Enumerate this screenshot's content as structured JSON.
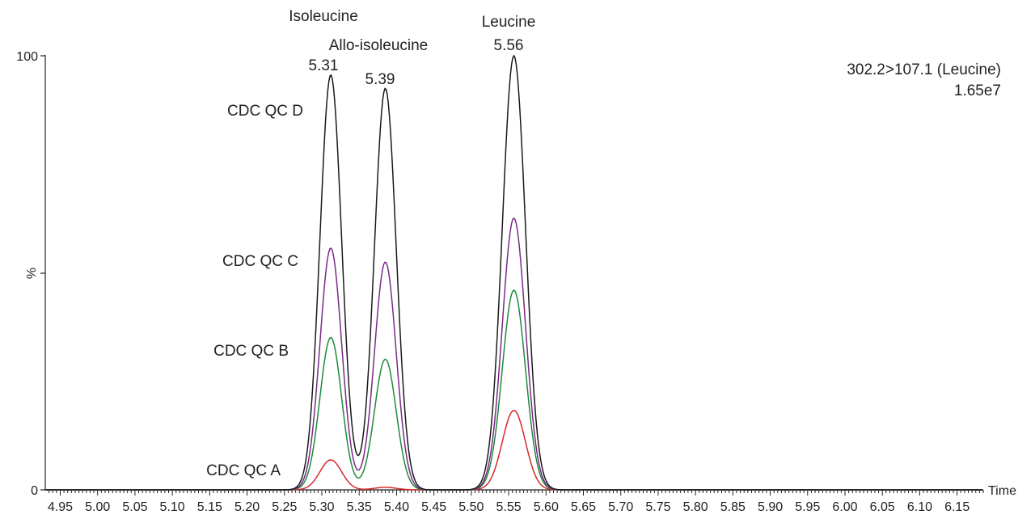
{
  "chart_data": {
    "type": "line",
    "title": "",
    "xlabel": "Time",
    "ylabel": "%",
    "xlim": [
      4.93,
      6.185
    ],
    "ylim": [
      0,
      100
    ],
    "x_ticks": [
      "4.95",
      "5.00",
      "5.05",
      "5.10",
      "5.15",
      "5.20",
      "5.25",
      "5.30",
      "5.35",
      "5.40",
      "5.45",
      "5.50",
      "5.55",
      "5.60",
      "5.65",
      "5.70",
      "5.75",
      "5.80",
      "5.85",
      "5.90",
      "5.95",
      "6.00",
      "6.05",
      "6.10",
      "6.15"
    ],
    "y_ticks": [
      "0",
      "100"
    ],
    "grid": false,
    "trace_info": {
      "transition": "302.2>107.1 (Leucine)",
      "intensity": "1.65e7"
    },
    "peaks": [
      {
        "name": "Isoleucine",
        "rt": "5.31"
      },
      {
        "name": "Allo-isoleucine",
        "rt": "5.39"
      },
      {
        "name": "Leucine",
        "rt": "5.56"
      }
    ],
    "series": [
      {
        "name": "CDC QC A",
        "color": "#d62a2a",
        "heights": [
          6.9,
          0.6,
          18.3
        ],
        "labeled_y": 3.5
      },
      {
        "name": "CDC QC B",
        "color": "#1f8a3a",
        "heights": [
          35.1,
          30.1,
          46.0
        ],
        "labeled_y": 32
      },
      {
        "name": "CDC QC C",
        "color": "#7a2a8a",
        "heights": [
          55.7,
          52.5,
          62.6
        ],
        "labeled_y": 53
      },
      {
        "name": "CDC QC D",
        "color": "#1a1a1a",
        "heights": [
          95.6,
          92.5,
          100
        ],
        "labeled_y": 88
      }
    ],
    "peak_centers": [
      5.312,
      5.385,
      5.557
    ],
    "peak_sigmas": [
      0.0145,
      0.0145,
      0.0155
    ]
  }
}
